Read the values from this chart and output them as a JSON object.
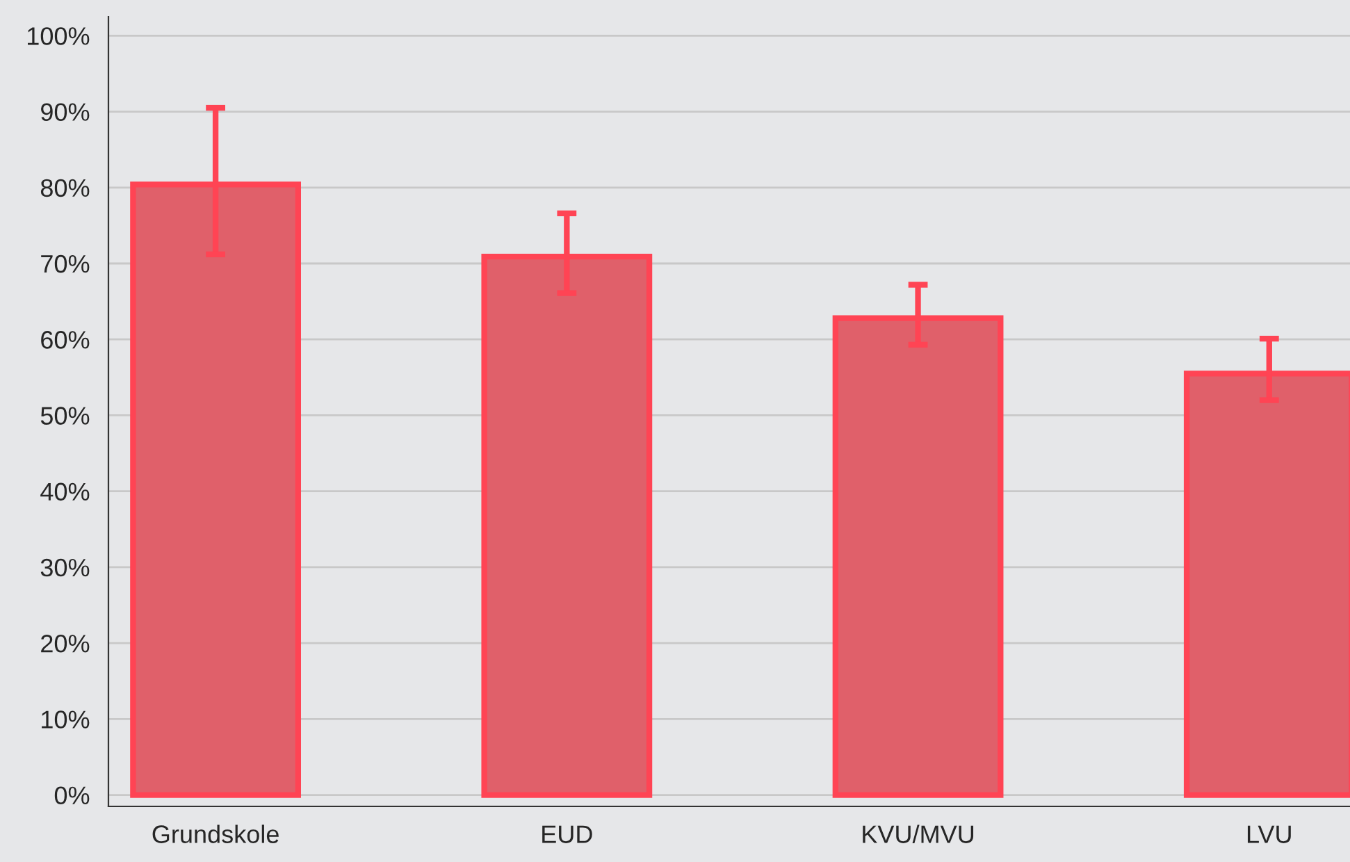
{
  "chart_data": {
    "type": "bar",
    "categories": [
      "Grundskole",
      "EUD",
      "KVU/MVU",
      "LVU"
    ],
    "color": "#e0606a",
    "values": [
      80.4,
      70.9,
      62.8,
      55.5
    ],
    "errors": [
      [
        71.2,
        90.5
      ],
      [
        66.1,
        76.6
      ],
      [
        59.3,
        67.2
      ],
      [
        52.0,
        60.1
      ]
    ],
    "ylim": [
      -1.5,
      102.5
    ],
    "yticks": [
      {
        "value": 0,
        "label": "0%"
      },
      {
        "value": 10,
        "label": "10%"
      },
      {
        "value": 20,
        "label": "20%"
      },
      {
        "value": 30,
        "label": "30%"
      },
      {
        "value": 40,
        "label": "40%"
      },
      {
        "value": 50,
        "label": "50%"
      },
      {
        "value": 60,
        "label": "60%"
      },
      {
        "value": 70,
        "label": "70%"
      },
      {
        "value": 80,
        "label": "80%"
      },
      {
        "value": 90,
        "label": "90%"
      },
      {
        "value": 100,
        "label": "100%"
      }
    ],
    "grid": "y",
    "legend": false
  }
}
